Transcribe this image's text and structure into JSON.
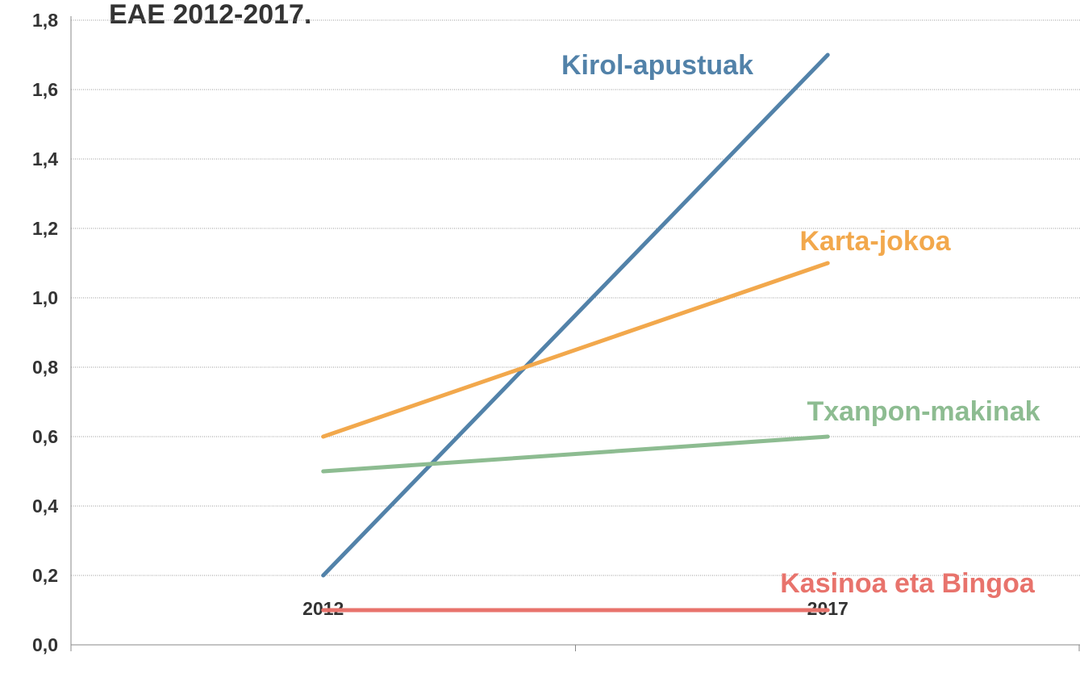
{
  "chart_data": {
    "type": "line",
    "title": "EAE 2012-2017.",
    "categories": [
      "2012",
      "2017"
    ],
    "series": [
      {
        "name": "Kirol-apustuak",
        "color": "#5282a9",
        "values": [
          0.2,
          1.7
        ]
      },
      {
        "name": "Karta-jokoa",
        "color": "#f2a84c",
        "values": [
          0.6,
          1.1
        ]
      },
      {
        "name": "Txanpon-makinak",
        "color": "#8dbc91",
        "values": [
          0.5,
          0.6
        ]
      },
      {
        "name": "Kasinoa eta Bingoa",
        "color": "#e8736c",
        "values": [
          0.1,
          0.1
        ]
      }
    ],
    "ylim": [
      0,
      1.8
    ],
    "yticks": [
      {
        "value": 0,
        "label": "0,0"
      },
      {
        "value": 0.2,
        "label": "0,2"
      },
      {
        "value": 0.4,
        "label": "0,4"
      },
      {
        "value": 0.6,
        "label": "0,6"
      },
      {
        "value": 0.8,
        "label": "0,8"
      },
      {
        "value": 1.0,
        "label": "1,0"
      },
      {
        "value": 1.2,
        "label": "1,2"
      },
      {
        "value": 1.4,
        "label": "1,4"
      },
      {
        "value": 1.6,
        "label": "1,6"
      },
      {
        "value": 1.8,
        "label": "1,8"
      }
    ],
    "grid": true
  }
}
